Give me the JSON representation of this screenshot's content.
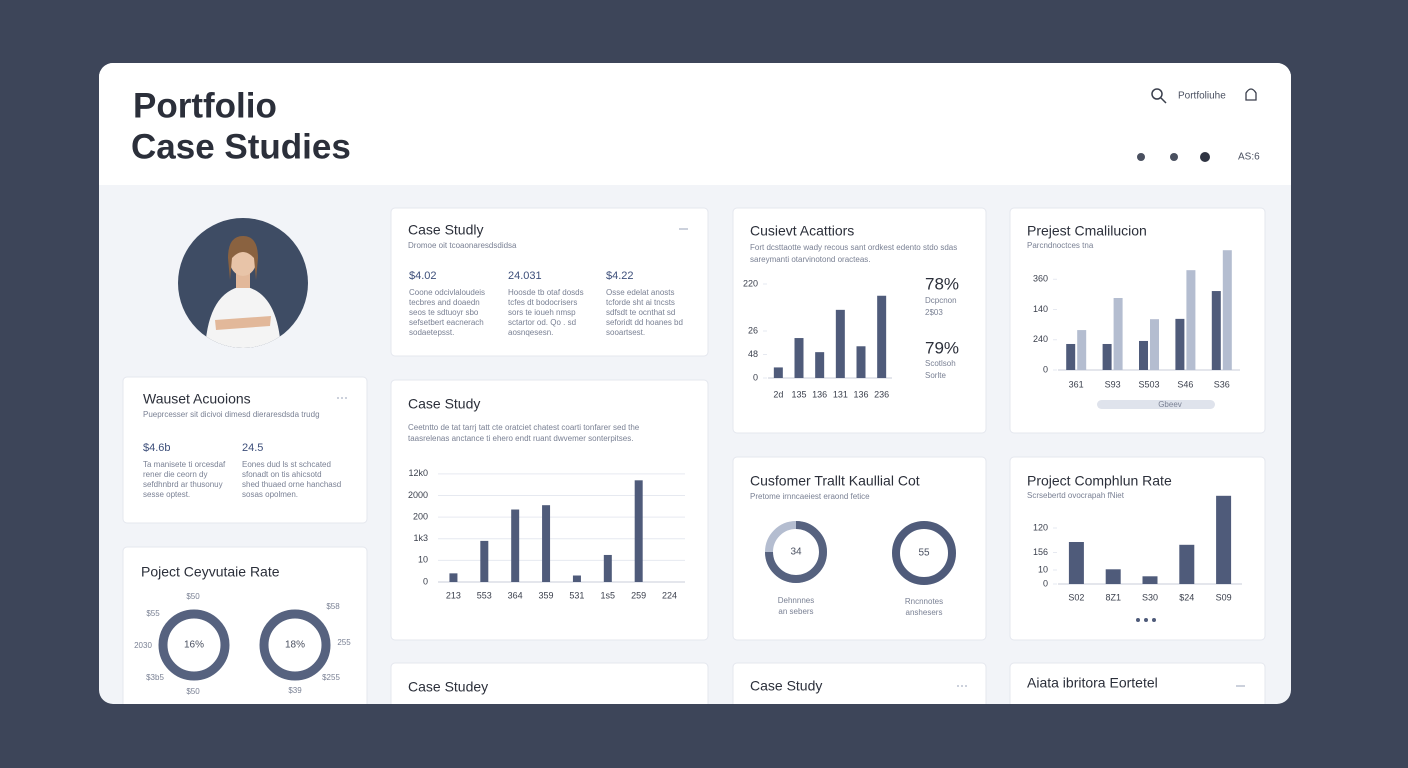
{
  "header": {
    "title_line1": "Portfolio",
    "title_line2": "Case Studies",
    "search_label": "Portfoliuhe",
    "status": "AS:6"
  },
  "acquisitions_card": {
    "title": "Wauset Acuoions",
    "subtitle": "Pueprcesser sit dicivoi dimesd dieraresdsda trudg",
    "stats": [
      {
        "value": "$4.6b",
        "lines": [
          "Ta manisete ti orcesdaf",
          "rener die ceorn dy",
          "sefdhnbrd ar thusonuy",
          "sesse optest."
        ]
      },
      {
        "value": "24.5",
        "lines": [
          "Eones dud ls st schcated",
          "sfonadt on tis ahicsotd",
          "shed thuaed orne hanchasd",
          "sosas opolmen."
        ]
      }
    ]
  },
  "ring_card": {
    "title": "Poject Ceyvutaie Rate",
    "rings": [
      {
        "label": "16%"
      },
      {
        "label": "18%"
      }
    ],
    "ring_labels": [
      "$50",
      "$55",
      "2030",
      "$3b5",
      "$50",
      "$58",
      "255",
      "$255",
      "$39"
    ]
  },
  "case_summary": {
    "title": "Case Studly",
    "subtitle": "Dromoe oit tcoaonaresdsdidsa",
    "stats": [
      {
        "value": "$4.02",
        "lines": [
          "Coone odcivlaloudeis",
          "tecbres and doaedn",
          "seos te sdtuoyr sbo",
          "sefsetbert eacnerach",
          "sodaetepsst."
        ]
      },
      {
        "value": "24.031",
        "lines": [
          "Hoosde tb otaf dosds",
          "tcfes dt bodocrisers",
          "sors te ioueh nmsp",
          "sctartor od. Qo . sd",
          "aosnqesesn."
        ]
      },
      {
        "value": "$4.22",
        "lines": [
          "Osse edelat anosts",
          "tcforde sht ai tncsts",
          "sdfsdt te ocnthat sd",
          "seforidt dd hoanes bd",
          "sooartsest."
        ]
      }
    ]
  },
  "case_chart": {
    "title": "Case Study",
    "description": [
      "Ceetntto de tat tarrj tatt cte oratciet chatest coarti tonfarer sed the",
      "taasrelenas anctance ti ehero endt ruant dwvemer sonterpitses."
    ],
    "chart": {
      "type": "bar",
      "categories": [
        "213",
        "553",
        "364",
        "359",
        "531",
        "1s5",
        "259",
        "224"
      ],
      "values": [
        8,
        38,
        67,
        71,
        6,
        25,
        94,
        null
      ],
      "color": "#4f5b7a",
      "ylim": [
        0,
        110
      ],
      "yticks": [
        0,
        {
          "value": 20,
          "label": "10"
        },
        {
          "value": 40,
          "label": "1k3"
        },
        {
          "value": 60,
          "label": "200"
        },
        {
          "value": 80,
          "label": "2000"
        },
        {
          "value": 100,
          "label": "12k0"
        }
      ],
      "grid": true
    }
  },
  "acq_chart": {
    "title": "Cusievt Acattiors",
    "subtitle": [
      "Fort dcsttaotte wady recous sant ordkest edento stdo sdas",
      "sareymanti otarvinotond oracteas."
    ],
    "chart": {
      "type": "bar",
      "categories": [
        "2d",
        "135",
        "136",
        "131",
        "136",
        "236"
      ],
      "values": [
        9,
        34,
        22,
        58,
        27,
        70
      ],
      "color": "#4f5b7a",
      "ylim": [
        0,
        80
      ],
      "yticks": [
        0,
        {
          "value": 20,
          "label": "48"
        },
        {
          "value": 40,
          "label": "26"
        },
        {
          "value": 80,
          "label": "220"
        }
      ],
      "grid": false
    },
    "stats": [
      {
        "value": "78%",
        "lines": [
          "Dcpcnon",
          "2$03"
        ]
      },
      {
        "value": "79%",
        "lines": [
          "Scotlsoh",
          "Sorlte"
        ]
      }
    ]
  },
  "completion_card": {
    "title": "Prejest Cmalilucion",
    "subtitle": "Parcndnoctces tna",
    "footer": "Gbeev",
    "chart": {
      "type": "bar",
      "categories": [
        "361",
        "S93",
        "S503",
        "S46",
        "S36"
      ],
      "series": [
        {
          "color": "#4f5b7a",
          "values": [
            86,
            86,
            96,
            169,
            261
          ]
        },
        {
          "color": "#b4bdd0",
          "values": [
            132,
            238,
            168,
            330,
            396
          ]
        }
      ],
      "ylim": [
        0,
        400
      ],
      "yticks": [
        0,
        {
          "value": 100,
          "label": "240"
        },
        {
          "value": 200,
          "label": "140"
        },
        {
          "value": 300,
          "label": "360"
        }
      ],
      "grid": false
    }
  },
  "trait_card": {
    "title": "Cusfomer Trallt Kaullial Cot",
    "subtitle": "Pretome irnncaeiest eraond fetice",
    "donuts": [
      {
        "label": "34",
        "lines": [
          "Dehnnnes",
          "an sebers"
        ]
      },
      {
        "label": "55",
        "lines": [
          "Rncnnotes",
          "anshesers"
        ]
      }
    ]
  },
  "rate_card": {
    "title": "Project Comphlun Rate",
    "subtitle": "Scrsebertd ovocrapah fNiet",
    "chart": {
      "type": "bar",
      "categories": [
        "S02",
        "8Z1",
        "S30",
        "$24",
        "S09"
      ],
      "values": [
        60,
        21,
        11,
        56,
        126
      ],
      "color": "#4f5b7a",
      "ylim": [
        0,
        130
      ],
      "yticks": [
        0,
        {
          "value": 20,
          "label": "10"
        },
        {
          "value": 45,
          "label": "156"
        },
        {
          "value": 80,
          "label": "120"
        }
      ],
      "grid": false
    }
  },
  "bottom_cards": [
    "Case Studey",
    "Case Study",
    "Aiata ibritora Eortetel"
  ]
}
